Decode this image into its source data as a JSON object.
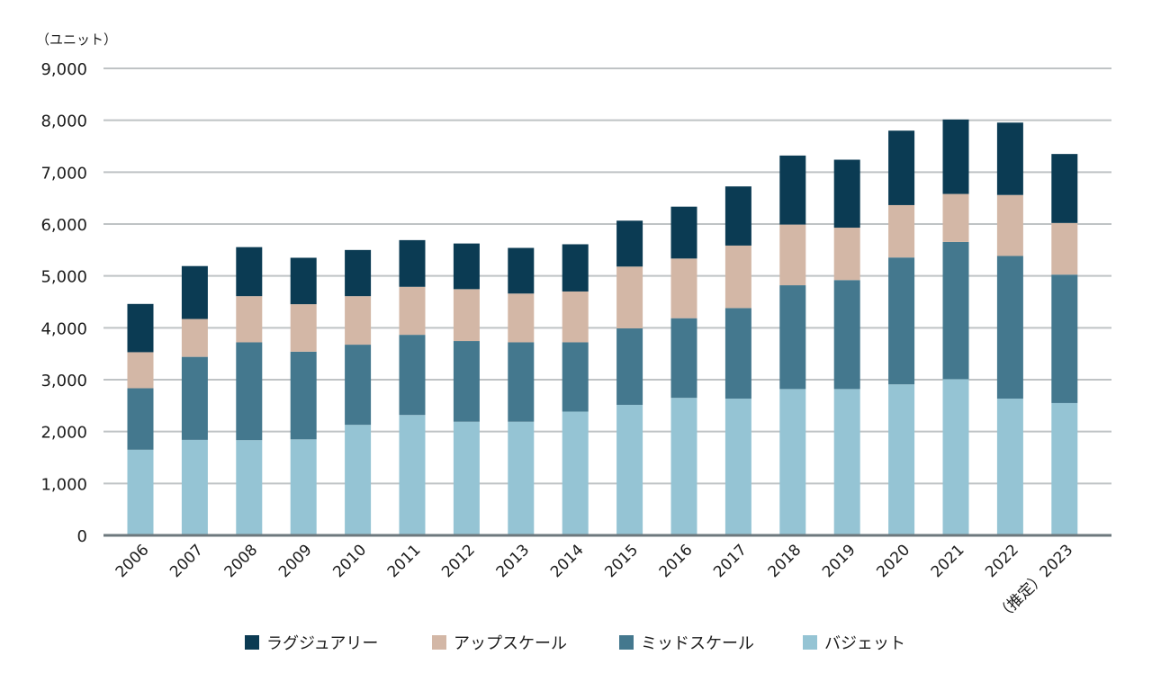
{
  "chart_data": {
    "type": "bar",
    "stacked": true,
    "title": "",
    "unit_label": "（ユニット）",
    "xlabel": "",
    "ylabel": "（ユニット）",
    "ylim": [
      0,
      9000
    ],
    "yticks": [
      0,
      1000,
      2000,
      3000,
      4000,
      5000,
      6000,
      7000,
      8000,
      9000
    ],
    "ytick_labels": [
      "0",
      "1,000",
      "2,000",
      "3,000",
      "4,000",
      "5,000",
      "6,000",
      "7,000",
      "8,000",
      "9,000"
    ],
    "grid": true,
    "legend_position": "bottom",
    "categories": [
      "2006",
      "2007",
      "2008",
      "2009",
      "2010",
      "2011",
      "2012",
      "2013",
      "2014",
      "2015",
      "2016",
      "2017",
      "2018",
      "2019",
      "2020",
      "2021",
      "2022",
      "（推定）2023"
    ],
    "series": [
      {
        "name": "バジェット",
        "key": "budget",
        "color": "#95c4d4",
        "values": [
          1650,
          1840,
          1835,
          1850,
          2130,
          2320,
          2190,
          2190,
          2385,
          2515,
          2650,
          2635,
          2820,
          2820,
          2910,
          3010,
          2635,
          2550
        ]
      },
      {
        "name": "ミッドスケール",
        "key": "midscale",
        "color": "#44788e",
        "values": [
          1185,
          1600,
          1885,
          1690,
          1545,
          1545,
          1555,
          1530,
          1335,
          1475,
          1535,
          1745,
          2000,
          2100,
          2445,
          2645,
          2750,
          2475
        ]
      },
      {
        "name": "アップスケール",
        "key": "upscale",
        "color": "#d3b7a6",
        "values": [
          695,
          730,
          890,
          915,
          935,
          925,
          1000,
          940,
          980,
          1190,
          1150,
          1205,
          1170,
          1010,
          1010,
          925,
          1175,
          995
        ]
      },
      {
        "name": "ラグジュアリー",
        "key": "luxury",
        "color": "#0b3b53",
        "values": [
          930,
          1020,
          945,
          895,
          890,
          900,
          880,
          880,
          910,
          885,
          1000,
          1140,
          1330,
          1310,
          1435,
          1435,
          1395,
          1330
        ]
      }
    ],
    "legend_order": [
      "luxury",
      "upscale",
      "midscale",
      "budget"
    ]
  },
  "colors": {
    "grid": "#bfc3c5",
    "axis": "#6d787d",
    "text": "#1c1c1c"
  }
}
